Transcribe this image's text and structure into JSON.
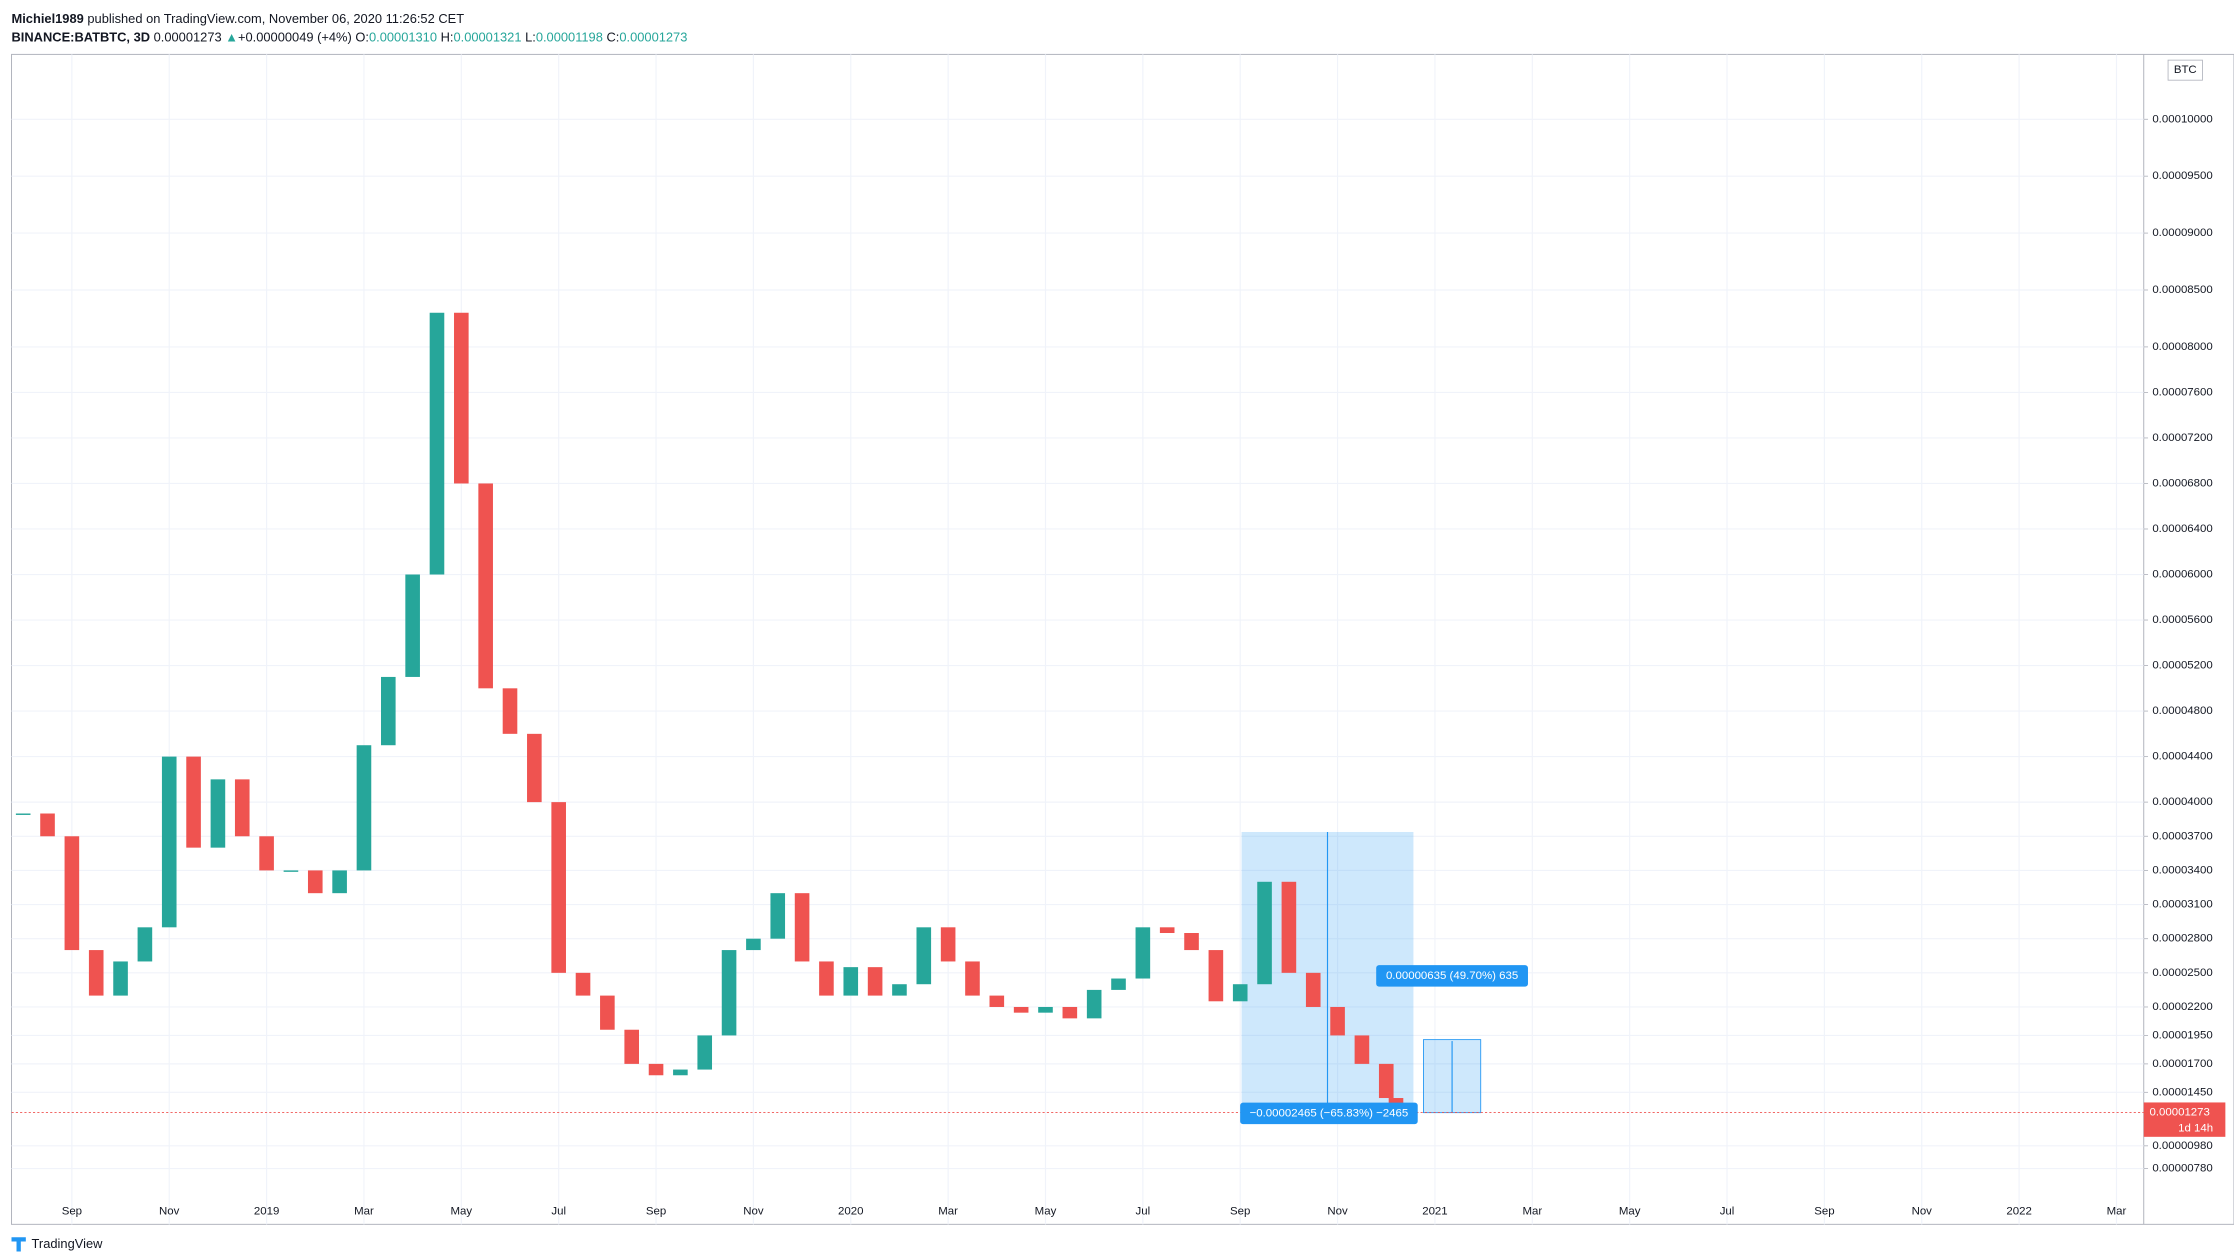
{
  "header": {
    "publisher": "Michiel1989",
    "published": "published on TradingView.com, November 06, 2020 11:26:52 CET",
    "symbol": "BINANCE:BATBTC, 3D",
    "last": "0.00001273",
    "arrow": "▲",
    "change": "+0.00000049 (+4%)",
    "o_label": "O:",
    "o": "0.00001310",
    "h_label": "H:",
    "h": "0.00001321",
    "l_label": "L:",
    "l": "0.00001198",
    "c_label": "C:",
    "c": "0.00001273"
  },
  "chart_data": {
    "type": "candlestick",
    "currency": "BTC",
    "x": [
      7,
      7.5,
      8,
      8.5,
      9,
      9.5,
      10,
      10.5,
      11,
      11.5,
      12,
      12.5,
      13,
      13.5,
      14,
      14.5,
      15,
      15.5,
      16,
      16.5,
      17,
      17.5,
      18,
      18.5,
      19,
      19.5,
      20,
      20.5,
      21,
      21.5,
      22,
      22.5,
      23,
      23.5,
      24,
      24.5,
      25,
      25.5,
      26,
      26.5,
      27,
      27.5,
      28,
      28.5,
      29,
      29.5,
      30,
      30.5,
      31,
      31.5,
      32,
      32.5,
      33,
      33.5,
      34,
      34.5,
      35,
      35.2
    ],
    "values": [
      3.9e-05,
      3.7e-05,
      2.7e-05,
      2.3e-05,
      2.6e-05,
      2.9e-05,
      4.4e-05,
      3.6e-05,
      4.2e-05,
      3.7e-05,
      3.4e-05,
      3.4e-05,
      3.2e-05,
      3.4e-05,
      4.5e-05,
      5.1e-05,
      6e-05,
      8.3e-05,
      6.8e-05,
      5e-05,
      4.6e-05,
      4e-05,
      2.5e-05,
      2.3e-05,
      2e-05,
      1.7e-05,
      1.6e-05,
      1.65e-05,
      1.95e-05,
      2.7e-05,
      2.8e-05,
      3.2e-05,
      2.6e-05,
      2.3e-05,
      2.55e-05,
      2.3e-05,
      2.4e-05,
      2.9e-05,
      2.6e-05,
      2.3e-05,
      2.2e-05,
      2.15e-05,
      2.2e-05,
      2.1e-05,
      2.35e-05,
      2.45e-05,
      2.9e-05,
      2.85e-05,
      2.7e-05,
      2.25e-05,
      2.4e-05,
      3.3e-05,
      2.5e-05,
      2.2e-05,
      1.95e-05,
      1.7e-05,
      1.4e-05,
      1.273e-05
    ],
    "up_color": "#26a69a",
    "down_color": "#ef5350",
    "xlim": [
      6.76,
      50.56
    ],
    "xticks": [
      {
        "value": 8,
        "label": "Sep"
      },
      {
        "value": 10,
        "label": "Nov"
      },
      {
        "value": 12,
        "label": "2019"
      },
      {
        "value": 14,
        "label": "Mar"
      },
      {
        "value": 16,
        "label": "May"
      },
      {
        "value": 18,
        "label": "Jul"
      },
      {
        "value": 20,
        "label": "Sep"
      },
      {
        "value": 22,
        "label": "Nov"
      },
      {
        "value": 24,
        "label": "2020"
      },
      {
        "value": 26,
        "label": "Mar"
      },
      {
        "value": 28,
        "label": "May"
      },
      {
        "value": 30,
        "label": "Jul"
      },
      {
        "value": 32,
        "label": "Sep"
      },
      {
        "value": 34,
        "label": "Nov"
      },
      {
        "value": 36,
        "label": "2021"
      },
      {
        "value": 38,
        "label": "Mar"
      },
      {
        "value": 40,
        "label": "May"
      },
      {
        "value": 42,
        "label": "Jul"
      },
      {
        "value": 44,
        "label": "Sep"
      },
      {
        "value": 46,
        "label": "Nov"
      },
      {
        "value": 48,
        "label": "2022"
      },
      {
        "value": 50,
        "label": "Mar"
      }
    ],
    "ylim": [
      2.9e-06,
      0.0001057
    ],
    "yticks": [
      {
        "value": 0.0001,
        "label": "0.00010000"
      },
      {
        "value": 9.5e-05,
        "label": "0.00009500"
      },
      {
        "value": 9e-05,
        "label": "0.00009000"
      },
      {
        "value": 8.5e-05,
        "label": "0.00008500"
      },
      {
        "value": 8e-05,
        "label": "0.00008000"
      },
      {
        "value": 7.6e-05,
        "label": "0.00007600"
      },
      {
        "value": 7.2e-05,
        "label": "0.00007200"
      },
      {
        "value": 6.8e-05,
        "label": "0.00006800"
      },
      {
        "value": 6.4e-05,
        "label": "0.00006400"
      },
      {
        "value": 6e-05,
        "label": "0.00006000"
      },
      {
        "value": 5.6e-05,
        "label": "0.00005600"
      },
      {
        "value": 5.2e-05,
        "label": "0.00005200"
      },
      {
        "value": 4.8e-05,
        "label": "0.00004800"
      },
      {
        "value": 4.4e-05,
        "label": "0.00004400"
      },
      {
        "value": 4e-05,
        "label": "0.00004000"
      },
      {
        "value": 3.7e-05,
        "label": "0.00003700"
      },
      {
        "value": 3.4e-05,
        "label": "0.00003400"
      },
      {
        "value": 3.1e-05,
        "label": "0.00003100"
      },
      {
        "value": 2.8e-05,
        "label": "0.00002800"
      },
      {
        "value": 2.5e-05,
        "label": "0.00002500"
      },
      {
        "value": 2.2e-05,
        "label": "0.00002200"
      },
      {
        "value": 1.95e-05,
        "label": "0.00001950"
      },
      {
        "value": 1.7e-05,
        "label": "0.00001700"
      },
      {
        "value": 1.45e-05,
        "label": "0.00001450"
      },
      {
        "value": 9.8e-06,
        "label": "0.00000980"
      },
      {
        "value": 7.8e-06,
        "label": "0.00000780"
      }
    ],
    "grid": true,
    "countdown": "1d 14h"
  },
  "annotations": {
    "gain": "0.00000635 (49.70%) 635",
    "loss": "−0.00002465 (−65.83%) −2465"
  },
  "footer": "TradingView"
}
